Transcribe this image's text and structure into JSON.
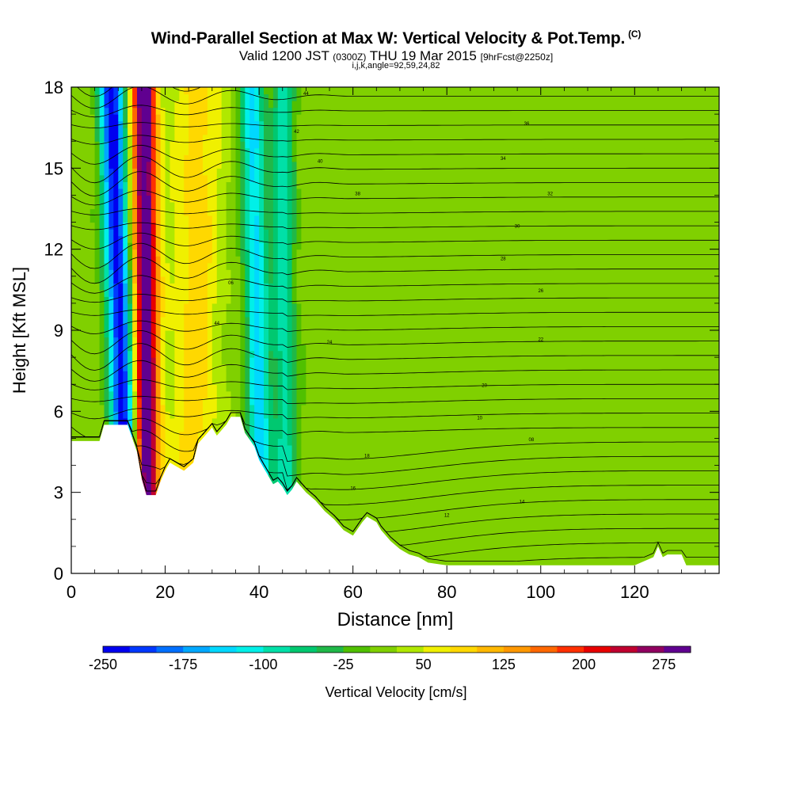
{
  "header": {
    "title": "Wind-Parallel Section at Max W: Vertical Velocity & Pot.Temp.",
    "title_mark": "(C)",
    "subtitle_main": "Valid 1200 JST",
    "subtitle_utc": "(0300Z)",
    "subtitle_date": "THU 19 Mar 2015",
    "subtitle_fcst": "[9hrFcst@2250z]",
    "params": "i,j,k,angle=92,59,24,82"
  },
  "colors": {
    "background_field": "#a8e000",
    "terrain": "#ffffff",
    "contour": "#000000",
    "scale": [
      "#0000f0",
      "#0038ff",
      "#0070ff",
      "#00a8ff",
      "#00d8ff",
      "#00f0e8",
      "#00e0a8",
      "#00c870",
      "#20b848",
      "#50c000",
      "#80d000",
      "#b0e800",
      "#f0f000",
      "#ffd800",
      "#ffb800",
      "#ff9800",
      "#ff6800",
      "#ff3000",
      "#e80000",
      "#c00030",
      "#900060",
      "#600090"
    ]
  },
  "chart_data": {
    "type": "heatmap",
    "title": "Wind-Parallel Section at Max W: Vertical Velocity & Pot.Temp.",
    "xlabel": "Distance [nm]",
    "ylabel": "Height [Kft MSL]",
    "xlim": [
      0,
      138
    ],
    "ylim": [
      0,
      18
    ],
    "xticks": [
      0,
      20,
      40,
      60,
      80,
      100,
      120
    ],
    "yticks": [
      0,
      3,
      6,
      9,
      12,
      15,
      18
    ],
    "grid": false,
    "colorbar": {
      "label": "Vertical Velocity [cm/s]",
      "min": -250,
      "max": 300,
      "step": 25,
      "tick_labels": [
        "-250",
        "-175",
        "-100",
        "-25",
        "50",
        "125",
        "200",
        "275"
      ]
    },
    "terrain_profile": {
      "x": [
        0,
        6,
        7,
        12,
        14,
        15,
        16,
        18,
        19,
        20,
        21,
        23,
        24,
        26,
        27,
        30,
        31,
        33,
        34,
        36,
        37,
        39,
        40,
        41,
        42,
        43,
        44,
        45,
        46,
        47,
        48,
        49,
        50,
        52,
        54,
        56,
        58,
        60,
        62,
        63,
        65,
        66,
        68,
        70,
        72,
        74,
        76,
        78,
        80,
        84,
        90,
        100,
        110,
        120,
        124,
        125,
        126,
        127,
        130,
        131,
        138
      ],
      "y": [
        4.9,
        4.9,
        5.5,
        5.5,
        4.5,
        3.5,
        2.9,
        2.9,
        3.4,
        3.8,
        4.1,
        3.9,
        3.8,
        4.1,
        4.8,
        5.4,
        5.1,
        5.5,
        5.8,
        5.8,
        5.2,
        4.7,
        4.2,
        3.9,
        3.6,
        3.3,
        3.4,
        3.2,
        2.9,
        3.1,
        3.4,
        3.2,
        3.0,
        2.7,
        2.3,
        2.0,
        1.6,
        1.4,
        1.9,
        2.1,
        1.9,
        1.6,
        1.2,
        0.9,
        0.7,
        0.6,
        0.4,
        0.35,
        0.3,
        0.3,
        0.3,
        0.3,
        0.3,
        0.3,
        0.6,
        1.0,
        0.6,
        0.7,
        0.7,
        0.3,
        0.3
      ]
    },
    "vertical_velocity_features": [
      {
        "name": "downdraft-1",
        "x_center_at_6kft": 11.0,
        "x_center_at_18kft": 8.5,
        "peak": -250
      },
      {
        "name": "updraft-1",
        "x_center_at_6kft": 16.0,
        "x_center_at_18kft": 15.5,
        "peak": 300
      },
      {
        "name": "updraft-2",
        "x_center_at_6kft": 26.0,
        "x_center_at_18kft": 27.0,
        "peak": 75
      },
      {
        "name": "downdraft-2",
        "x_center_at_6kft": 40.0,
        "x_center_at_18kft": 38.5,
        "peak": -150
      },
      {
        "name": "downdraft-3",
        "x_center_at_6kft": 45.5,
        "x_center_at_18kft": 45.0,
        "peak": -100
      }
    ],
    "isentrope_labels": [
      "44",
      "42",
      "40",
      "38",
      "36",
      "34",
      "32",
      "30",
      "28",
      "26",
      "24",
      "22",
      "20",
      "18",
      "16",
      "14",
      "12",
      "10",
      "08",
      "06"
    ],
    "isentrope_count": 34
  }
}
